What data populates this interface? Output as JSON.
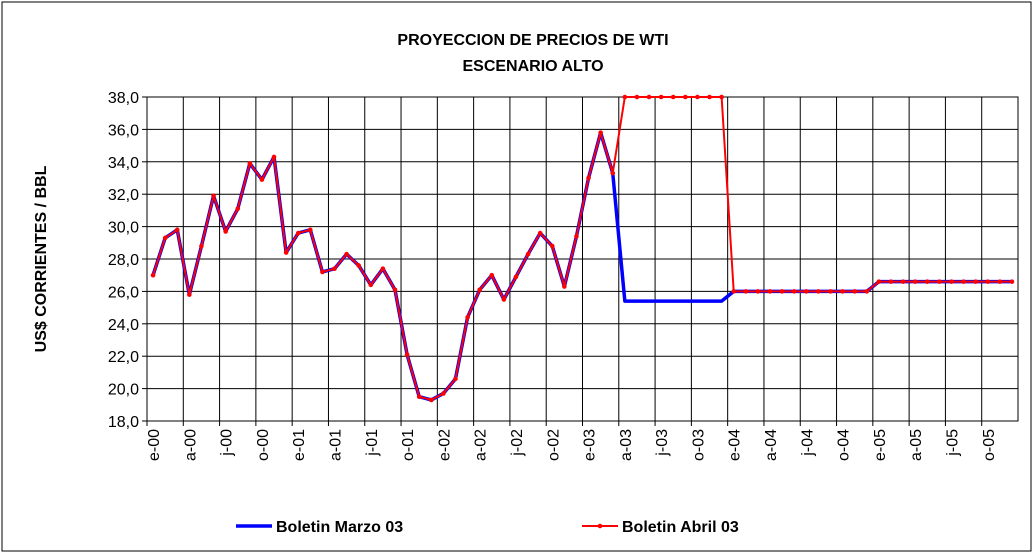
{
  "chart_data": {
    "type": "line",
    "title": "PROYECCION DE PRECIOS DE WTI",
    "subtitle": "ESCENARIO ALTO",
    "y_label": "US$ CORRIENTES / BBL",
    "categories": [
      "e-00",
      null,
      null,
      "a-00",
      null,
      null,
      "j-00",
      null,
      null,
      "o-00",
      null,
      null,
      "e-01",
      null,
      null,
      "a-01",
      null,
      null,
      "j-01",
      null,
      null,
      "o-01",
      null,
      null,
      "e-02",
      null,
      null,
      "a-02",
      null,
      null,
      "j-02",
      null,
      null,
      "o-02",
      null,
      null,
      "e-03",
      null,
      null,
      "a-03",
      null,
      null,
      "j-03",
      null,
      null,
      "o-03",
      null,
      null,
      "e-04",
      null,
      null,
      "a-04",
      null,
      null,
      "j-04",
      null,
      null,
      "o-04",
      null,
      null,
      "e-05",
      null,
      null,
      "a-05",
      null,
      null,
      "j-05",
      null,
      null,
      "o-05",
      null,
      null
    ],
    "series": [
      {
        "name": "Boletin Marzo 03",
        "color": "#0000ff",
        "markers": false,
        "values": [
          27.0,
          29.3,
          29.8,
          25.8,
          28.8,
          31.9,
          29.7,
          31.1,
          33.9,
          32.9,
          34.3,
          28.4,
          29.6,
          29.8,
          27.2,
          27.4,
          28.3,
          27.6,
          26.4,
          27.4,
          26.1,
          22.1,
          19.5,
          19.3,
          19.7,
          20.6,
          24.4,
          26.1,
          27.0,
          25.5,
          26.9,
          28.3,
          29.6,
          28.8,
          26.3,
          29.4,
          33.0,
          35.8,
          33.3,
          25.4,
          25.4,
          25.4,
          25.4,
          25.4,
          25.4,
          25.4,
          25.4,
          25.4,
          26.0,
          26.0,
          26.0,
          26.0,
          26.0,
          26.0,
          26.0,
          26.0,
          26.0,
          26.0,
          26.0,
          26.0,
          26.6,
          26.6,
          26.6,
          26.6,
          26.6,
          26.6,
          26.6,
          26.6,
          26.6,
          26.6,
          26.6,
          26.6
        ]
      },
      {
        "name": "Boletin Abril 03",
        "color": "#ff0000",
        "markers": true,
        "values": [
          27.0,
          29.3,
          29.8,
          25.8,
          28.8,
          31.9,
          29.7,
          31.1,
          33.9,
          32.9,
          34.3,
          28.4,
          29.6,
          29.8,
          27.2,
          27.4,
          28.3,
          27.6,
          26.4,
          27.4,
          26.1,
          22.1,
          19.5,
          19.3,
          19.7,
          20.6,
          24.4,
          26.1,
          27.0,
          25.5,
          26.9,
          28.3,
          29.6,
          28.8,
          26.3,
          29.4,
          33.0,
          35.8,
          33.3,
          38.0,
          38.0,
          38.0,
          38.0,
          38.0,
          38.0,
          38.0,
          38.0,
          38.0,
          26.0,
          26.0,
          26.0,
          26.0,
          26.0,
          26.0,
          26.0,
          26.0,
          26.0,
          26.0,
          26.0,
          26.0,
          26.6,
          26.6,
          26.6,
          26.6,
          26.6,
          26.6,
          26.6,
          26.6,
          26.6,
          26.6,
          26.6,
          26.6
        ]
      }
    ],
    "ylim": [
      18,
      38
    ],
    "yticks": [
      {
        "value": 18,
        "label": "18,0"
      },
      {
        "value": 20,
        "label": "20,0"
      },
      {
        "value": 22,
        "label": "22,0"
      },
      {
        "value": 24,
        "label": "24,0"
      },
      {
        "value": 26,
        "label": "26,0"
      },
      {
        "value": 28,
        "label": "28,0"
      },
      {
        "value": 30,
        "label": "30,0"
      },
      {
        "value": 32,
        "label": "32,0"
      },
      {
        "value": 34,
        "label": "34,0"
      },
      {
        "value": 36,
        "label": "36,0"
      },
      {
        "value": 38,
        "label": "38,0"
      }
    ],
    "grid": true,
    "legend": "bottom"
  }
}
